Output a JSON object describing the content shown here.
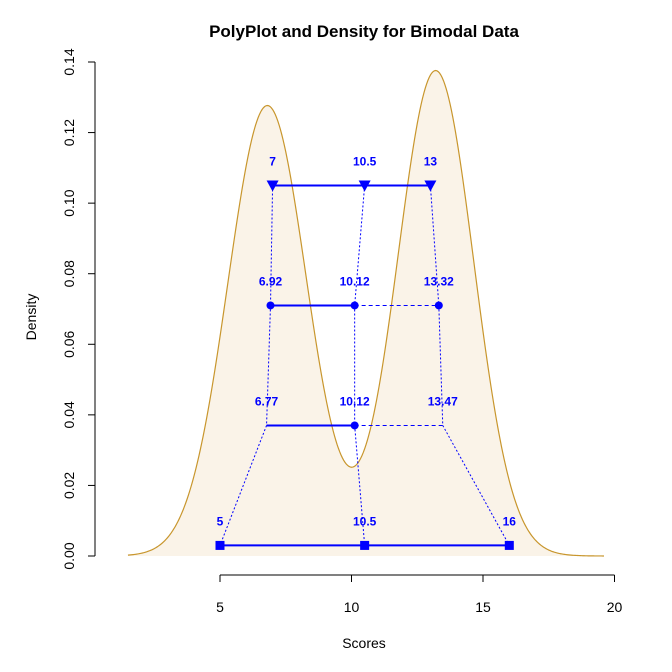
{
  "chart_data": {
    "type": "area",
    "title": "PolyPlot and Density for Bimodal Data",
    "xlabel": "Scores",
    "ylabel": "Density",
    "xlim": [
      1.5,
      20.2
    ],
    "ylim": [
      0,
      0.14
    ],
    "x_ticks": [
      "5",
      "10",
      "15",
      "20"
    ],
    "y_ticks": [
      "0.00",
      "0.02",
      "0.04",
      "0.06",
      "0.08",
      "0.10",
      "0.12",
      "0.14"
    ],
    "density": {
      "fill_color": "#faf3e8",
      "line_color": "#c8962d",
      "components": [
        {
          "mean": 6.8,
          "sd": 1.5,
          "weight": 0.48
        },
        {
          "mean": 13.2,
          "sd": 1.45,
          "weight": 0.5
        }
      ],
      "x_range": [
        1.5,
        19.6
      ]
    },
    "polyplot": {
      "color": "#0000ff",
      "levels": [
        {
          "y": 0.105,
          "marker": "triangle",
          "points": [
            {
              "x": 7,
              "label": "7"
            },
            {
              "x": 10.5,
              "label": "10.5"
            },
            {
              "x": 13,
              "label": "13"
            }
          ]
        },
        {
          "y": 0.071,
          "marker": "circle",
          "points": [
            {
              "x": 6.92,
              "label": "6.92"
            },
            {
              "x": 10.12,
              "label": "10.12"
            },
            {
              "x": 13.32,
              "label": "13.32"
            }
          ]
        },
        {
          "y": 0.037,
          "marker": "none",
          "points": [
            {
              "x": 6.77,
              "label": "6.77"
            },
            {
              "x": 10.12,
              "label": "10.12"
            },
            {
              "x": 13.47,
              "label": "13.47"
            }
          ]
        },
        {
          "y": 0.003,
          "marker": "square",
          "points": [
            {
              "x": 5,
              "label": "5"
            },
            {
              "x": 10.5,
              "label": "10.5"
            },
            {
              "x": 16,
              "label": "16"
            }
          ]
        }
      ],
      "mid_circle": {
        "x": 10.12,
        "y": 0.037
      }
    }
  }
}
